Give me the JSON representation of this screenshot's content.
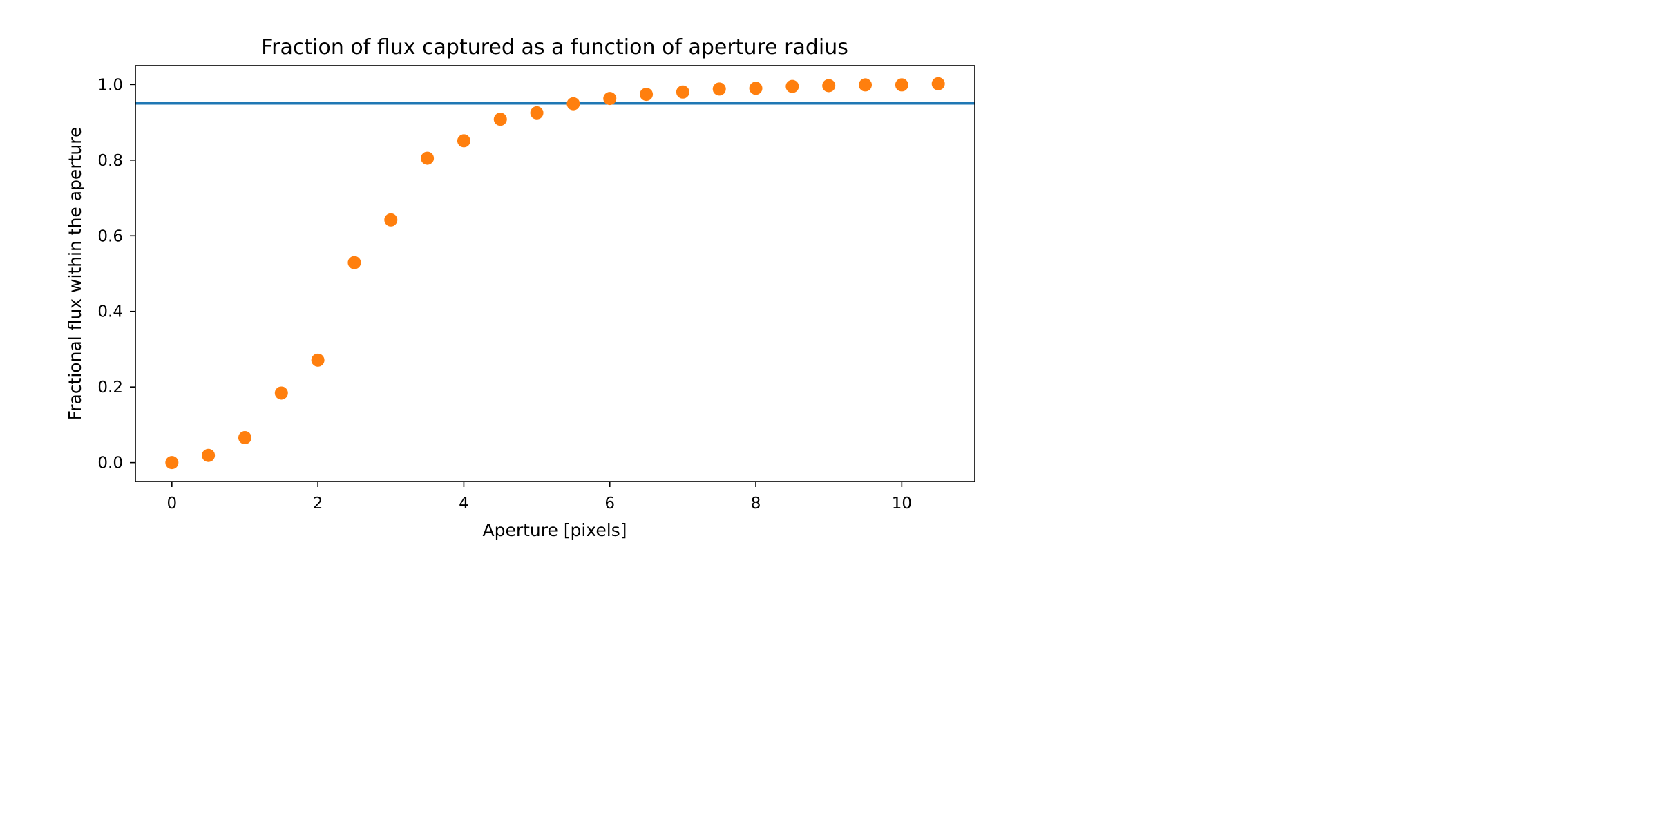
{
  "chart_data": {
    "type": "scatter",
    "title": "Fraction of flux captured as a function of aperture radius",
    "xlabel": "Aperture [pixels]",
    "ylabel": "Fractional flux within the aperture",
    "xlim": [
      -0.5,
      11.0
    ],
    "ylim": [
      -0.05,
      1.05
    ],
    "xticks": [
      0,
      2,
      4,
      6,
      8,
      10
    ],
    "xtick_labels": [
      "0",
      "2",
      "4",
      "6",
      "8",
      "10"
    ],
    "yticks": [
      0.0,
      0.2,
      0.4,
      0.6,
      0.8,
      1.0
    ],
    "ytick_labels": [
      "0.0",
      "0.2",
      "0.4",
      "0.6",
      "0.8",
      "1.0"
    ],
    "grid": false,
    "series": [
      {
        "x": [
          0,
          0.5,
          1.0,
          1.5,
          2.0,
          2.5,
          3.0,
          3.5,
          4.0,
          4.5,
          5.0,
          5.5,
          6.0,
          6.5,
          7.0,
          7.5,
          8.0,
          8.5,
          9.0,
          9.5,
          10.0,
          10.5
        ],
        "y": [
          0.0,
          0.019,
          0.066,
          0.184,
          0.271,
          0.529,
          0.642,
          0.805,
          0.851,
          0.908,
          0.925,
          0.949,
          0.963,
          0.974,
          0.98,
          0.988,
          0.99,
          0.995,
          0.997,
          0.999,
          0.999,
          1.002
        ],
        "color": "#ff7f0e",
        "marker": "circle"
      }
    ],
    "hlines": [
      {
        "y": 0.95,
        "color": "#1f77b4"
      }
    ]
  }
}
